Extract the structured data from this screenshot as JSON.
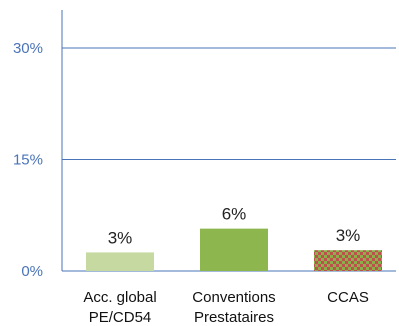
{
  "chart_data": {
    "type": "bar",
    "title": "",
    "xlabel": "",
    "ylabel": "",
    "categories": [
      [
        "Acc. global",
        "PE/CD54"
      ],
      [
        "Conventions",
        "Prestataires"
      ],
      [
        "CCAS"
      ]
    ],
    "values": [
      2.5,
      5.7,
      2.8
    ],
    "data_labels": [
      "3%",
      "6%",
      "3%"
    ],
    "y_ticks": [
      {
        "value": 0,
        "label": "0%"
      },
      {
        "value": 15,
        "label": "15%"
      },
      {
        "value": 30,
        "label": "30%"
      }
    ],
    "ylim": [
      0,
      36
    ],
    "grid": true,
    "legend": "none",
    "colors": {
      "bar_1": "#c6d9a0",
      "bar_2": "#8db64f",
      "bar_3_checker_a": "#8ab04a",
      "bar_3_checker_b": "#c0504d",
      "grid": "#4a74b8",
      "axis": "#4a74b8"
    }
  }
}
